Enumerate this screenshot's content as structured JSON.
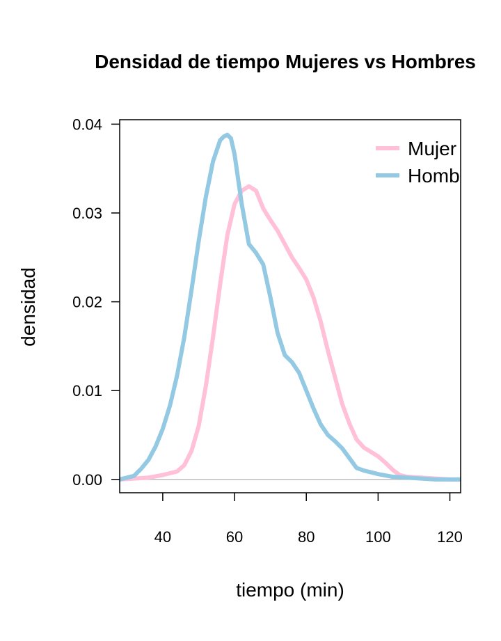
{
  "chart_data": {
    "type": "line",
    "title": "Densidad de tiempo Mujeres vs Hombres",
    "xlabel": "tiempo (min)",
    "ylabel": "densidad",
    "xlim": [
      28,
      123
    ],
    "ylim": [
      -0.0015,
      0.0405
    ],
    "x_ticks": [
      40,
      60,
      80,
      100,
      120
    ],
    "y_ticks": [
      0.0,
      0.01,
      0.02,
      0.03,
      0.04
    ],
    "x_tick_labels": [
      "40",
      "60",
      "80",
      "100",
      "120"
    ],
    "y_tick_labels": [
      "0.00",
      "0.01",
      "0.02",
      "0.03",
      "0.04"
    ],
    "baseline": 0,
    "legend_position": "top-right",
    "series": [
      {
        "name": "Mujer",
        "color": "#ffc0d8",
        "x": [
          28,
          32,
          36,
          40,
          44,
          46,
          48,
          50,
          52,
          54,
          56,
          58,
          60,
          62,
          64,
          66,
          68,
          70,
          72,
          74,
          76,
          78,
          80,
          82,
          84,
          86,
          88,
          90,
          92,
          94,
          96,
          98,
          100,
          102,
          104,
          106,
          108,
          112,
          116,
          120,
          123
        ],
        "y": [
          0.0,
          0.0001,
          0.0002,
          0.0005,
          0.0009,
          0.0016,
          0.0032,
          0.006,
          0.0105,
          0.016,
          0.022,
          0.0275,
          0.031,
          0.0325,
          0.033,
          0.0325,
          0.0305,
          0.0292,
          0.028,
          0.0265,
          0.025,
          0.0238,
          0.0225,
          0.0205,
          0.0178,
          0.0145,
          0.0115,
          0.0085,
          0.0063,
          0.0045,
          0.0036,
          0.0031,
          0.0026,
          0.0019,
          0.0011,
          0.0005,
          0.0003,
          0.0002,
          0.0001,
          0.0,
          0.0
        ]
      },
      {
        "name": "Hombre",
        "color": "#93c9e3",
        "x": [
          28,
          32,
          34,
          36,
          38,
          40,
          42,
          44,
          46,
          48,
          50,
          52,
          54,
          56,
          57,
          58,
          59,
          60,
          62,
          64,
          66,
          68,
          70,
          72,
          74,
          76,
          78,
          80,
          82,
          84,
          86,
          88,
          90,
          92,
          94,
          96,
          98,
          100,
          104,
          108,
          112,
          116,
          120,
          123
        ],
        "y": [
          0.0,
          0.0004,
          0.0012,
          0.0022,
          0.0037,
          0.0057,
          0.0083,
          0.0117,
          0.016,
          0.0213,
          0.0268,
          0.0318,
          0.0358,
          0.0382,
          0.0386,
          0.0388,
          0.0384,
          0.0366,
          0.031,
          0.0265,
          0.0255,
          0.0242,
          0.0205,
          0.0165,
          0.014,
          0.0132,
          0.012,
          0.01,
          0.008,
          0.0062,
          0.005,
          0.0043,
          0.0035,
          0.0024,
          0.0013,
          0.001,
          0.0008,
          0.0006,
          0.0003,
          0.0002,
          0.0001,
          0.0,
          0.0,
          0.0
        ]
      }
    ]
  }
}
